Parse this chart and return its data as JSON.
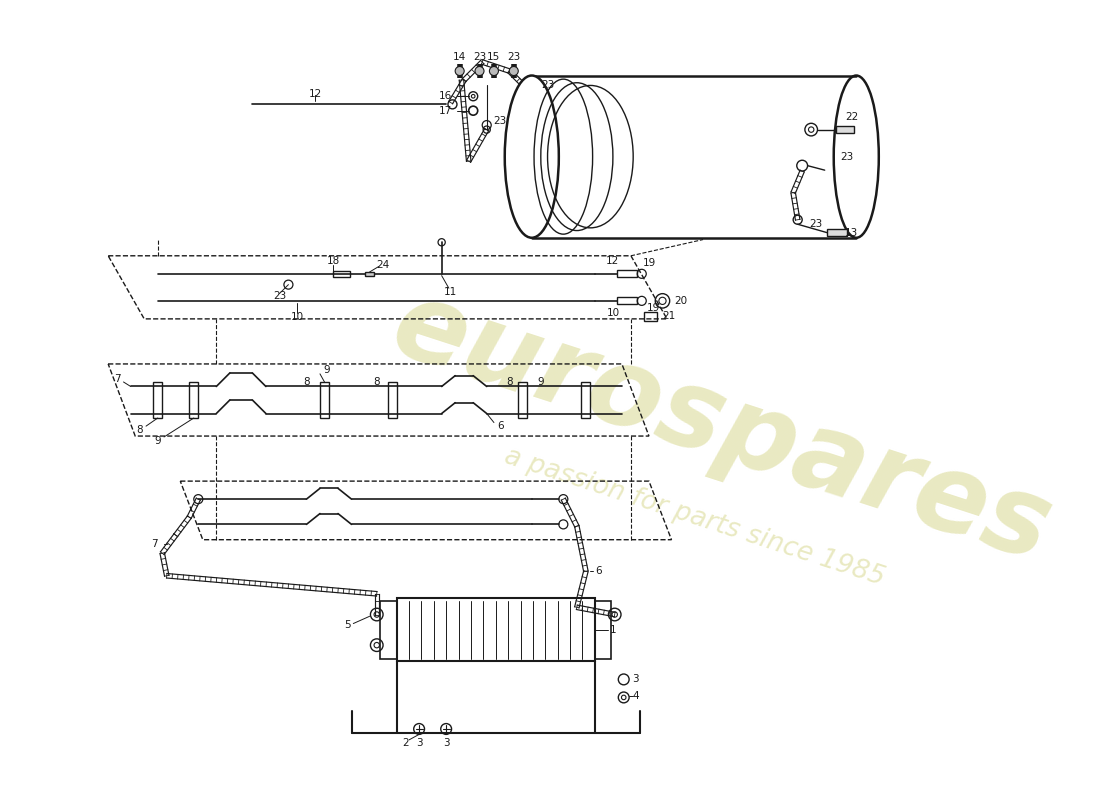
{
  "bg_color": "#ffffff",
  "lc": "#1a1a1a",
  "wm1": "eurospares",
  "wm2": "a passion for parts since 1985",
  "wm_color": "#d8d890"
}
